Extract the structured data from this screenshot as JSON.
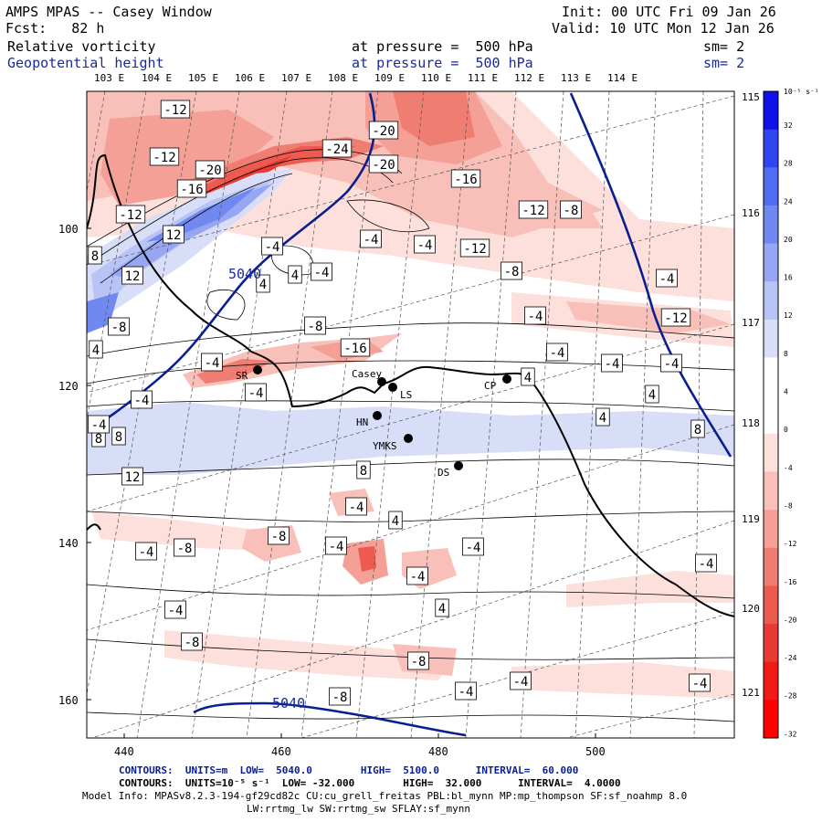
{
  "header": {
    "title": "AMPS MPAS -- Casey Window",
    "fcst": "Fcst:   82 h",
    "init": "Init: 00 UTC Fri 09 Jan 26",
    "valid": "Valid: 10 UTC Mon 12 Jan 26",
    "field1_name": "Relative vorticity",
    "field1_level": "at pressure =  500 hPa",
    "field1_sm": "sm= 2",
    "field2_name": "Geopotential height",
    "field2_level": "at pressure =  500 hPa",
    "field2_sm": "sm= 2"
  },
  "lon_labels_top": [
    "103 E",
    "104 E",
    "105 E",
    "106 E",
    "107 E",
    "108 E",
    "109 E",
    "110 E",
    "111 E",
    "112 E",
    "113 E",
    "114 E"
  ],
  "lon_labels_right": [
    "115 E",
    "116 E",
    "117 E",
    "118 E",
    "119 E",
    "120 E",
    "121 E"
  ],
  "x_axis": {
    "ticks": [
      "440",
      "460",
      "480",
      "500"
    ]
  },
  "y_axis": {
    "ticks": [
      "100",
      "120",
      "140",
      "160"
    ]
  },
  "colorbar": {
    "unit": "10⁻⁵ s⁻¹",
    "labels": [
      "32",
      "28",
      "24",
      "20",
      "16",
      "12",
      "8",
      "4",
      "0",
      "-4",
      "-8",
      "-12",
      "-16",
      "-20",
      "-24",
      "-28",
      "-32"
    ],
    "colors": [
      "#1010e8",
      "#2f45f0",
      "#4f6cf2",
      "#7088f0",
      "#97a6f2",
      "#b8c4f5",
      "#d9def8",
      "#ffffff",
      "#ffffff",
      "#fde0dc",
      "#f8c0b8",
      "#f4a096",
      "#f07d72",
      "#ec5a50",
      "#e83a32",
      "#f21a14",
      "#ff0000"
    ]
  },
  "contour_labels": [
    "-12",
    "-20",
    "-24",
    "-20",
    "-12",
    "-20",
    "-16",
    "-16",
    "12",
    "-4",
    "-12",
    "-12",
    "-8",
    "-4",
    "-4",
    "-8",
    "12",
    "-4",
    "4",
    "-4",
    "4",
    "-8",
    "-4",
    "-12",
    "-8",
    "-4",
    "-16",
    "-4",
    "-4",
    "-4",
    "8",
    "4",
    "8",
    "4",
    "-4",
    "8",
    "4",
    "4",
    "12",
    "8",
    "-4",
    "4",
    "-8",
    "-4",
    "-8",
    "-4",
    "-4",
    "-4",
    "4",
    "-4",
    "-4",
    "-8",
    "-8",
    "-4",
    "-4",
    "-4",
    "-8",
    "-4",
    "8",
    "-12",
    "-4"
  ],
  "height_labels": [
    "5040",
    "5040"
  ],
  "stations": [
    "Casey",
    "LS",
    "SR",
    "CP",
    "HN",
    "YMKS",
    "DS"
  ],
  "footer": {
    "line1_contours": "CONTOURS:  UNITS=m  LOW=  5040.0        HIGH=  5100.0      INTERVAL=  60.000",
    "line2_contours": "CONTOURS:  UNITS=10⁻⁵ s⁻¹  LOW= -32.000        HIGH=  32.000      INTERVAL=  4.0000",
    "line3_model": "Model Info: MPASv8.2.3-194-gf29cd82c CU:cu_grell_freitas PBL:bl_mynn MP:mp_thompson SF:sf_noahmp 8.0",
    "line4_model": "LW:rrtmg_lw SW:rrtmg_sw SFLAY:sf_mynn"
  }
}
